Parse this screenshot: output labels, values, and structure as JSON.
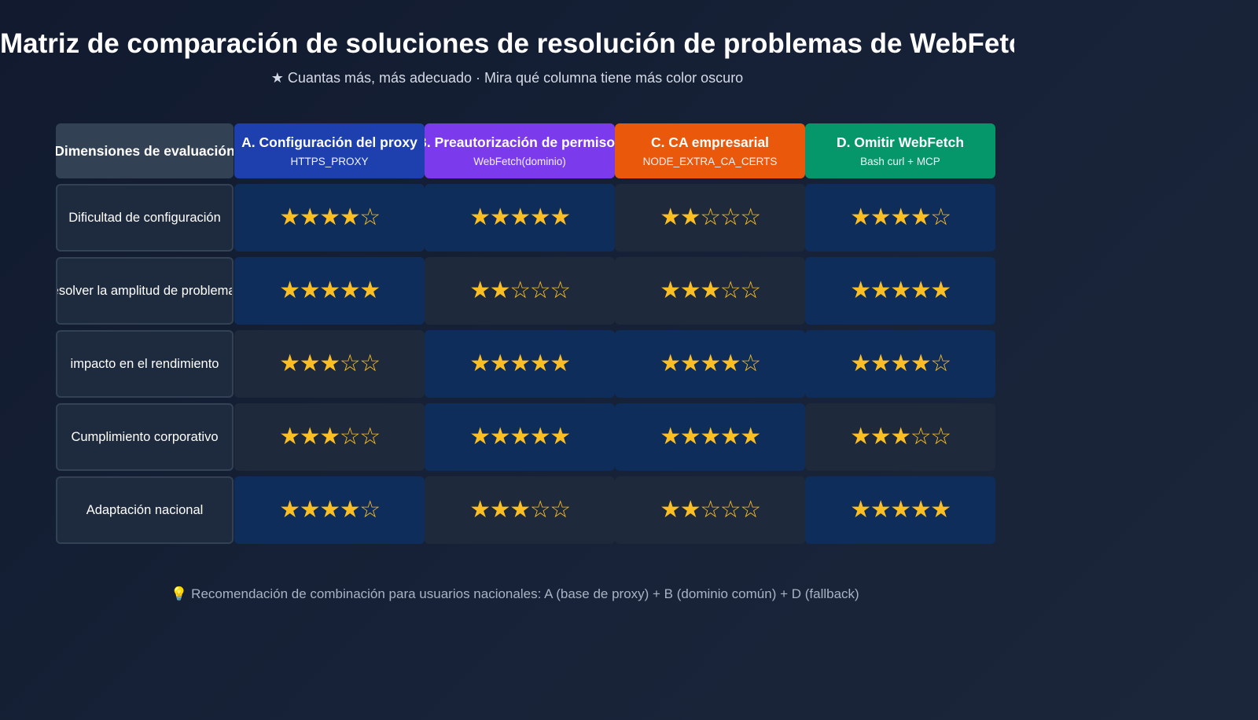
{
  "title": "Matriz de comparación de soluciones de resolución de problemas de WebFetch",
  "subtitle": "★ Cuantas más, más adecuado · Mira qué columna tiene más color oscuro",
  "corner_label": "Dimensiones de evaluación",
  "columns": [
    {
      "title": "A. Configuración del proxy",
      "subtitle": "HTTPS_PROXY",
      "color": "#1e40af"
    },
    {
      "title": "B. Preautorización de permisos",
      "subtitle": "WebFetch(dominio)",
      "color": "#7c3aed"
    },
    {
      "title": "C. CA empresarial",
      "subtitle": "NODE_EXTRA_CA_CERTS",
      "color": "#ea580c"
    },
    {
      "title": "D. Omitir WebFetch",
      "subtitle": "Bash curl + MCP",
      "color": "#059669"
    }
  ],
  "rows": [
    {
      "label": "Dificultad de configuración",
      "ratings": [
        4,
        5,
        2,
        4
      ]
    },
    {
      "label": "resolver la amplitud de problemas",
      "ratings": [
        5,
        2,
        3,
        5
      ]
    },
    {
      "label": "impacto en el rendimiento",
      "ratings": [
        3,
        5,
        4,
        4
      ]
    },
    {
      "label": "Cumplimiento corporativo",
      "ratings": [
        3,
        5,
        5,
        3
      ]
    },
    {
      "label": "Adaptación nacional",
      "ratings": [
        4,
        3,
        2,
        5
      ]
    }
  ],
  "max_rating": 5,
  "star_color": "#fbbf24",
  "cell_colors": {
    "highlight": "#0f2d5a",
    "normal": "#1e293b"
  },
  "footnote": "💡 Recomendación de combinación para usuarios nacionales: A (base de proxy) + B (dominio común) + D (fallback)"
}
